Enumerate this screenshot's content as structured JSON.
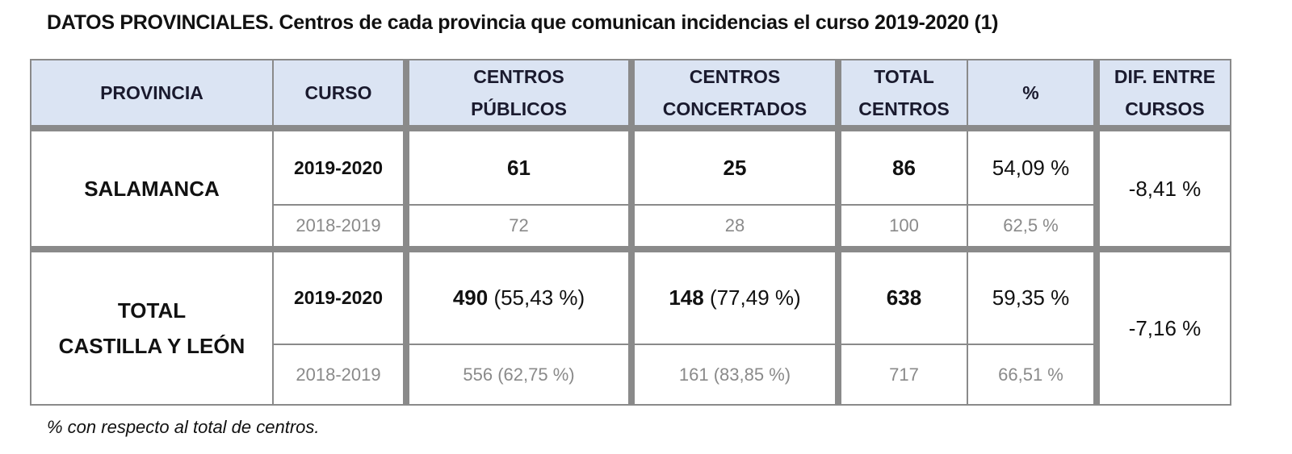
{
  "title": "DATOS PROVINCIALES. Centros de cada provincia que comunican incidencias el curso 2019-2020 (1)",
  "table": {
    "headers": {
      "provincia": "PROVINCIA",
      "curso": "CURSO",
      "publicos_l1": "CENTROS",
      "publicos_l2": "PÚBLICOS",
      "concertados_l1": "CENTROS",
      "concertados_l2": "CONCERTADOS",
      "total_l1": "TOTAL",
      "total_l2": "CENTROS",
      "pct": "%",
      "dif_l1": "DIF. ENTRE",
      "dif_l2": "CURSOS"
    },
    "groups": [
      {
        "provincia_l1": "SALAMANCA",
        "provincia_l2": "",
        "dif": "-8,41 %",
        "current": {
          "curso": "2019-2020",
          "publicos": "61",
          "publicos_pct": "",
          "concertados": "25",
          "concertados_pct": "",
          "total": "86",
          "pct": "54,09 %"
        },
        "previous": {
          "curso": "2018-2019",
          "publicos": "72",
          "concertados": "28",
          "total": "100",
          "pct": "62,5 %"
        }
      },
      {
        "provincia_l1": "TOTAL",
        "provincia_l2": "CASTILLA Y LEÓN",
        "dif": "-7,16 %",
        "current": {
          "curso": "2019-2020",
          "publicos": "490",
          "publicos_pct": " (55,43 %)",
          "concertados": "148",
          "concertados_pct": " (77,49 %)",
          "total": "638",
          "pct": "59,35 %"
        },
        "previous": {
          "curso": "2018-2019",
          "publicos": "556 (62,75 %)",
          "concertados": "161 (83,85 %)",
          "total": "717",
          "pct": "66,51 %"
        }
      }
    ]
  },
  "footnote": "% con respecto al total de centros.",
  "colors": {
    "header_bg": "#dbe4f3",
    "border": "#8a8a8a",
    "previous_text": "#8a8a8a",
    "text": "#111111"
  }
}
